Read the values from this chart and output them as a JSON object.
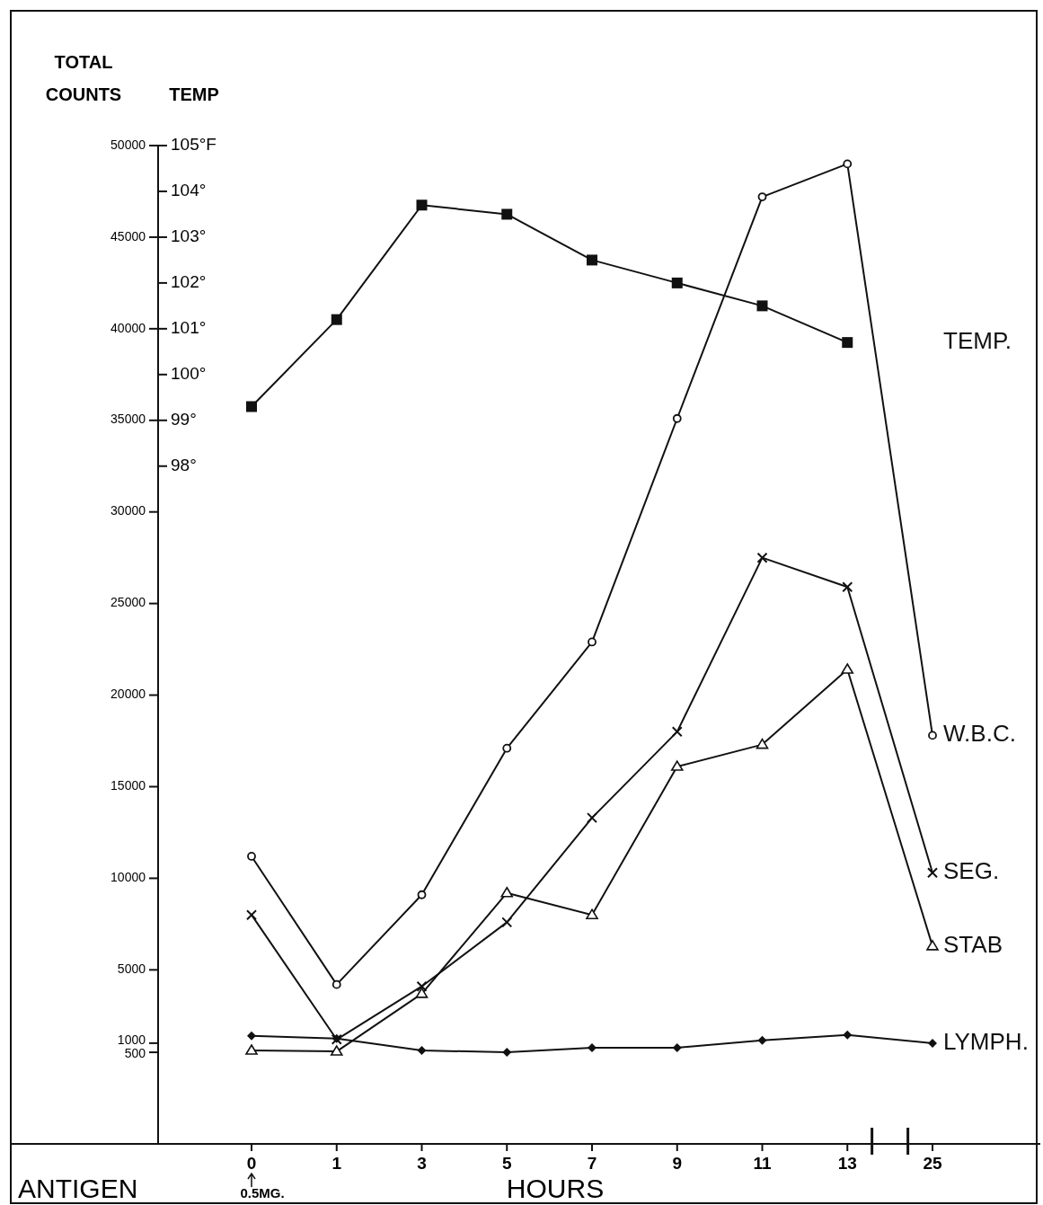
{
  "chart_data": {
    "type": "line",
    "xlabel": "HOURS",
    "ylabel": "TOTAL COUNTS",
    "y2label": "TEMP",
    "categories": [
      "0",
      "1",
      "3",
      "5",
      "7",
      "9",
      "11",
      "13",
      "25"
    ],
    "ylim": [
      -4500,
      50000
    ],
    "yticks": [
      500,
      1000,
      5000,
      10000,
      15000,
      20000,
      25000,
      30000,
      35000,
      40000,
      45000,
      50000
    ],
    "y2lim": [
      83.2,
      105
    ],
    "y2ticks": [
      {
        "value": 98,
        "label": "98°"
      },
      {
        "value": 99,
        "label": "99°"
      },
      {
        "value": 100,
        "label": "100°"
      },
      {
        "value": 101,
        "label": "101°"
      },
      {
        "value": 102,
        "label": "102°"
      },
      {
        "value": 103,
        "label": "103°"
      },
      {
        "value": 104,
        "label": "104°"
      },
      {
        "value": 105,
        "label": "105°F"
      }
    ],
    "series": [
      {
        "name": "TEMP.",
        "color": "#111111",
        "axis": "y2",
        "marker": "square",
        "values": [
          99.3,
          101.2,
          103.7,
          103.5,
          102.5,
          102.0,
          101.5,
          100.7,
          null
        ]
      },
      {
        "name": "W.B.C.",
        "color": "#111111",
        "marker": "circle",
        "values": [
          11200,
          4200,
          9100,
          17100,
          22900,
          35100,
          47200,
          49000,
          17800
        ]
      },
      {
        "name": "SEG.",
        "color": "#111111",
        "marker": "cross",
        "values": [
          8000,
          1200,
          4100,
          7600,
          13300,
          18000,
          27500,
          25900,
          10300
        ]
      },
      {
        "name": "STAB",
        "color": "#111111",
        "marker": "triangle",
        "values": [
          600,
          550,
          3700,
          9200,
          8000,
          16100,
          17300,
          21400,
          6300
        ]
      },
      {
        "name": "LYMPH.",
        "color": "#111111",
        "marker": "diamond",
        "values": [
          1400,
          1250,
          600,
          500,
          750,
          750,
          1150,
          1450,
          1000
        ]
      }
    ],
    "annotations": [
      "0.5MG.",
      "ANTIGEN"
    ],
    "grid": false,
    "legend": false,
    "line_style": "solid"
  }
}
